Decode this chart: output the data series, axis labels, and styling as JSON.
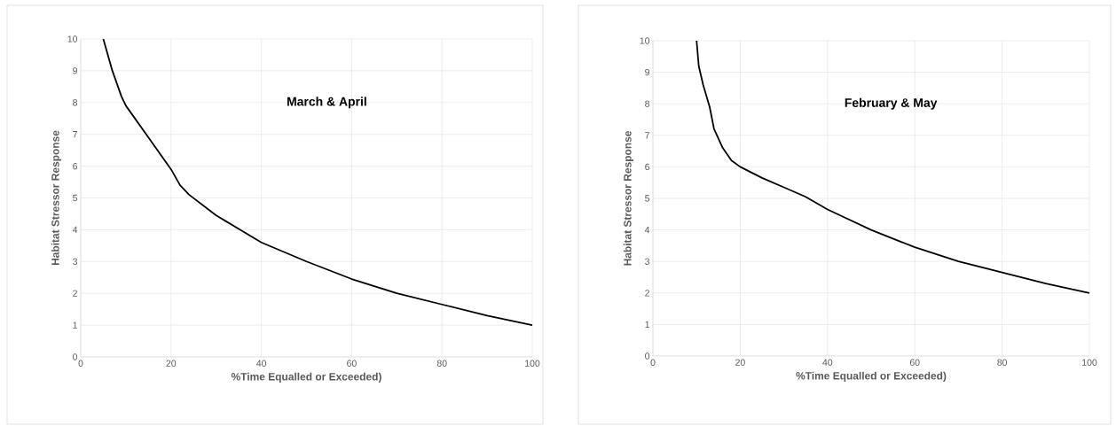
{
  "chart_data": [
    {
      "type": "line",
      "xlabel": "%Time Equalled or Exceeded)",
      "ylabel": "Habitat Stressor Response",
      "annotations": [
        "March & April"
      ],
      "series": [
        {
          "color": "#000000",
          "x": [
            5,
            7,
            9,
            10,
            15,
            20,
            22,
            24,
            30,
            40,
            50,
            60,
            70,
            80,
            90,
            100
          ],
          "values": [
            10,
            9,
            8.2,
            7.9,
            6.9,
            5.9,
            5.4,
            5.1,
            4.45,
            3.6,
            3.0,
            2.45,
            2.0,
            1.65,
            1.3,
            1.0
          ]
        }
      ],
      "xlim": [
        0,
        100
      ],
      "xticks": [
        0,
        20,
        40,
        60,
        80,
        100
      ],
      "ylim": [
        0,
        10
      ],
      "yticks": [
        0,
        1,
        2,
        3,
        4,
        5,
        6,
        7,
        8,
        9,
        10
      ],
      "grid": true,
      "line_style": "solid"
    },
    {
      "type": "line",
      "xlabel": "%Time Equalled or Exceeded)",
      "ylabel": "Habitat Stressor Response",
      "annotations": [
        "February & May"
      ],
      "series": [
        {
          "color": "#000000",
          "x": [
            10,
            10.5,
            11.5,
            13,
            14,
            16,
            18,
            20,
            25,
            30,
            35,
            40,
            50,
            60,
            70,
            80,
            90,
            100
          ],
          "values": [
            10,
            9.2,
            8.6,
            7.9,
            7.2,
            6.6,
            6.2,
            6.0,
            5.65,
            5.35,
            5.05,
            4.65,
            4.0,
            3.45,
            3.0,
            2.65,
            2.3,
            2.0
          ]
        }
      ],
      "xlim": [
        0,
        100
      ],
      "xticks": [
        0,
        20,
        40,
        60,
        80,
        100
      ],
      "ylim": [
        0,
        10
      ],
      "yticks": [
        0,
        1,
        2,
        3,
        4,
        5,
        6,
        7,
        8,
        9,
        10
      ],
      "grid": true,
      "line_style": "solid"
    }
  ]
}
